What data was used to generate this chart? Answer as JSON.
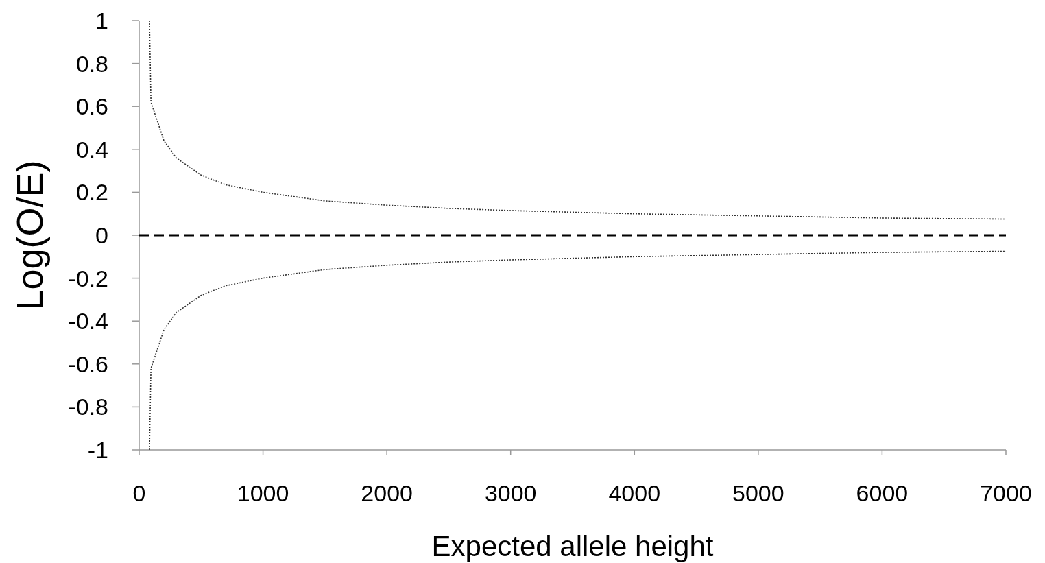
{
  "chart_data": {
    "type": "line",
    "xlabel": "Expected allele height",
    "ylabel": "Log(O/E)",
    "xlim": [
      0,
      7000
    ],
    "xticks": [
      0,
      1000,
      2000,
      3000,
      4000,
      5000,
      6000,
      7000
    ],
    "ylim": [
      -1,
      1
    ],
    "yticks": [
      -1,
      -0.8,
      -0.6,
      -0.4,
      -0.2,
      0,
      0.2,
      0.4,
      0.6,
      0.8,
      1
    ],
    "marker": "none",
    "line_style": "dotted",
    "series": [
      {
        "color": "#333333",
        "x": [
          83,
          95,
          200,
          300,
          500,
          700,
          1000,
          1500,
          2000,
          2500,
          3000,
          4000,
          5000,
          6000,
          7000
        ],
        "values": [
          1,
          0.62,
          0.44,
          0.36,
          0.28,
          0.235,
          0.2,
          0.16,
          0.14,
          0.125,
          0.115,
          0.1,
          0.09,
          0.08,
          0.075
        ]
      },
      {
        "color": "#333333",
        "x": [
          83,
          95,
          200,
          300,
          500,
          700,
          1000,
          1500,
          2000,
          2500,
          3000,
          4000,
          5000,
          6000,
          7000
        ],
        "values": [
          -1,
          -0.62,
          -0.44,
          -0.36,
          -0.28,
          -0.235,
          -0.2,
          -0.16,
          -0.14,
          -0.125,
          -0.115,
          -0.1,
          -0.09,
          -0.08,
          -0.075
        ]
      }
    ],
    "ref_lines": [
      {
        "axis": "y",
        "value": 0,
        "color": "#000000",
        "line_style": "dashed"
      }
    ]
  }
}
